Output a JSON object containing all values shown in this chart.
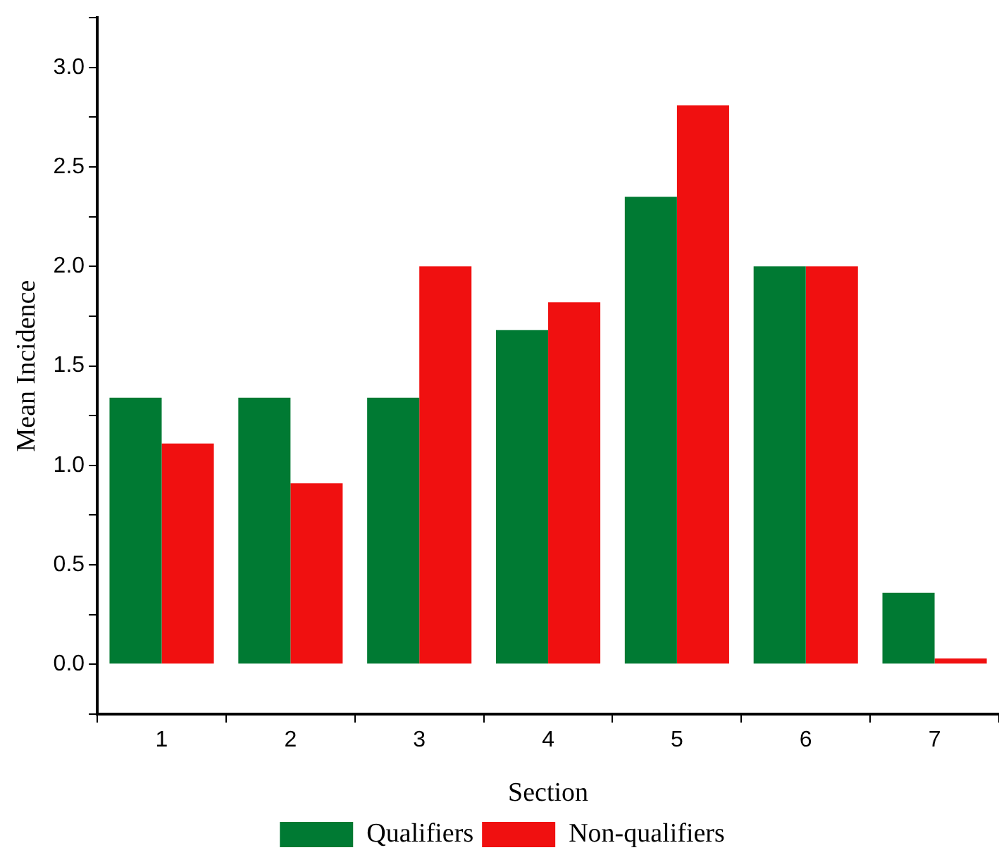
{
  "chart_data": {
    "type": "bar",
    "xlabel": "Section",
    "ylabel": "Mean Incidence",
    "categories": [
      "1",
      "2",
      "3",
      "4",
      "5",
      "6",
      "7"
    ],
    "series": [
      {
        "name": "Qualifiers",
        "color": "#007a33",
        "values": [
          1.34,
          1.34,
          1.34,
          1.68,
          2.35,
          2.0,
          0.36
        ]
      },
      {
        "name": "Non-qualifiers",
        "color": "#f01010",
        "values": [
          1.11,
          0.91,
          2.0,
          1.82,
          2.81,
          2.0,
          0.03
        ]
      }
    ],
    "ylim": [
      -0.25,
      3.25
    ],
    "yticks": [
      {
        "value": -0.25,
        "label": null
      },
      {
        "value": 0,
        "label": "0.0"
      },
      {
        "value": 0.25,
        "label": null
      },
      {
        "value": 0.5,
        "label": "0.5"
      },
      {
        "value": 0.75,
        "label": null
      },
      {
        "value": 1,
        "label": "1.0"
      },
      {
        "value": 1.25,
        "label": null
      },
      {
        "value": 1.5,
        "label": "1.5"
      },
      {
        "value": 1.75,
        "label": null
      },
      {
        "value": 2,
        "label": "2.0"
      },
      {
        "value": 2.25,
        "label": null
      },
      {
        "value": 2.5,
        "label": "2.5"
      },
      {
        "value": 2.75,
        "label": null
      },
      {
        "value": 3,
        "label": "3.0"
      },
      {
        "value": 3.25,
        "label": null
      }
    ],
    "grid": false,
    "legend": "bottom"
  }
}
